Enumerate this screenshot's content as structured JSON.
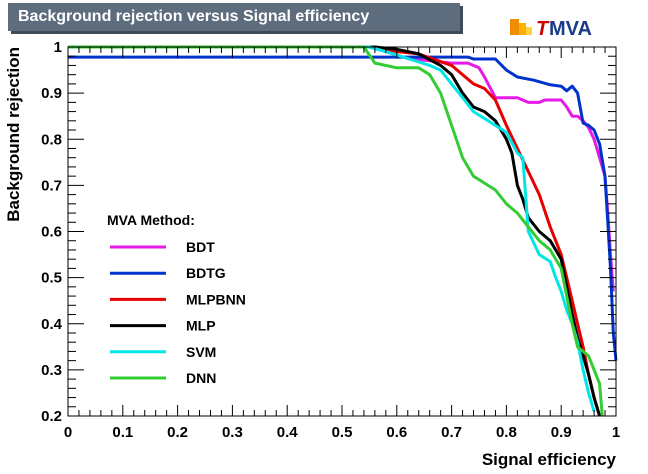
{
  "logo": {
    "prefix": "T",
    "name": "MVA"
  },
  "chart_data": {
    "type": "line",
    "title": "Background rejection versus Signal efficiency",
    "xlabel": "Signal efficiency",
    "ylabel": "Background rejection",
    "xlim": [
      0,
      1
    ],
    "ylim": [
      0.2,
      1
    ],
    "xticks": [
      "0",
      "0.1",
      "0.2",
      "0.3",
      "0.4",
      "0.5",
      "0.6",
      "0.7",
      "0.8",
      "0.9",
      "1"
    ],
    "yticks": [
      "0.2",
      "0.3",
      "0.4",
      "0.5",
      "0.6",
      "0.7",
      "0.8",
      "0.9",
      "1"
    ],
    "legend_title": "MVA Method:",
    "legend_position": "center-left",
    "grid": false,
    "series": [
      {
        "name": "BDT",
        "color": "#e619e6",
        "points": [
          [
            0,
            1
          ],
          [
            0.55,
            1
          ],
          [
            0.58,
            0.99
          ],
          [
            0.62,
            0.975
          ],
          [
            0.66,
            0.97
          ],
          [
            0.7,
            0.965
          ],
          [
            0.73,
            0.965
          ],
          [
            0.75,
            0.955
          ],
          [
            0.76,
            0.935
          ],
          [
            0.78,
            0.89
          ],
          [
            0.82,
            0.89
          ],
          [
            0.84,
            0.88
          ],
          [
            0.86,
            0.88
          ],
          [
            0.87,
            0.885
          ],
          [
            0.9,
            0.885
          ],
          [
            0.91,
            0.87
          ],
          [
            0.92,
            0.85
          ],
          [
            0.93,
            0.85
          ],
          [
            0.94,
            0.84
          ],
          [
            0.95,
            0.825
          ],
          [
            0.96,
            0.8
          ],
          [
            0.97,
            0.76
          ],
          [
            0.98,
            0.72
          ],
          [
            0.985,
            0.64
          ],
          [
            0.99,
            0.55
          ],
          [
            0.995,
            0.47
          ]
        ]
      },
      {
        "name": "BDTG",
        "color": "#0033cc",
        "points": [
          [
            0,
            0.978
          ],
          [
            0.72,
            0.978
          ],
          [
            0.73,
            0.978
          ],
          [
            0.74,
            0.974
          ],
          [
            0.78,
            0.974
          ],
          [
            0.8,
            0.95
          ],
          [
            0.82,
            0.935
          ],
          [
            0.85,
            0.928
          ],
          [
            0.88,
            0.918
          ],
          [
            0.9,
            0.915
          ],
          [
            0.91,
            0.905
          ],
          [
            0.92,
            0.915
          ],
          [
            0.93,
            0.9
          ],
          [
            0.94,
            0.835
          ],
          [
            0.95,
            0.83
          ],
          [
            0.96,
            0.82
          ],
          [
            0.97,
            0.79
          ],
          [
            0.98,
            0.72
          ],
          [
            0.985,
            0.62
          ],
          [
            0.99,
            0.52
          ],
          [
            0.995,
            0.38
          ],
          [
            1,
            0.32
          ]
        ]
      },
      {
        "name": "MLPBNN",
        "color": "#e60000",
        "points": [
          [
            0,
            1
          ],
          [
            0.56,
            1
          ],
          [
            0.6,
            0.99
          ],
          [
            0.64,
            0.985
          ],
          [
            0.7,
            0.96
          ],
          [
            0.72,
            0.94
          ],
          [
            0.74,
            0.92
          ],
          [
            0.76,
            0.91
          ],
          [
            0.78,
            0.885
          ],
          [
            0.8,
            0.83
          ],
          [
            0.82,
            0.78
          ],
          [
            0.84,
            0.73
          ],
          [
            0.86,
            0.68
          ],
          [
            0.88,
            0.61
          ],
          [
            0.9,
            0.55
          ],
          [
            0.91,
            0.5
          ],
          [
            0.92,
            0.45
          ],
          [
            0.93,
            0.4
          ],
          [
            0.94,
            0.35
          ],
          [
            0.95,
            0.29
          ],
          [
            0.96,
            0.24
          ],
          [
            0.97,
            0.2
          ]
        ]
      },
      {
        "name": "MLP",
        "color": "#000000",
        "points": [
          [
            0,
            1
          ],
          [
            0.56,
            1
          ],
          [
            0.6,
            0.995
          ],
          [
            0.64,
            0.985
          ],
          [
            0.68,
            0.96
          ],
          [
            0.7,
            0.94
          ],
          [
            0.72,
            0.9
          ],
          [
            0.74,
            0.87
          ],
          [
            0.76,
            0.86
          ],
          [
            0.78,
            0.84
          ],
          [
            0.79,
            0.82
          ],
          [
            0.8,
            0.8
          ],
          [
            0.81,
            0.77
          ],
          [
            0.82,
            0.7
          ],
          [
            0.83,
            0.67
          ],
          [
            0.84,
            0.63
          ],
          [
            0.86,
            0.6
          ],
          [
            0.88,
            0.58
          ],
          [
            0.9,
            0.54
          ],
          [
            0.91,
            0.48
          ],
          [
            0.92,
            0.42
          ],
          [
            0.93,
            0.37
          ],
          [
            0.94,
            0.33
          ],
          [
            0.95,
            0.29
          ],
          [
            0.96,
            0.24
          ],
          [
            0.97,
            0.2
          ]
        ]
      },
      {
        "name": "SVM",
        "color": "#00e6e6",
        "points": [
          [
            0,
            1
          ],
          [
            0.55,
            1
          ],
          [
            0.58,
            0.99
          ],
          [
            0.62,
            0.975
          ],
          [
            0.66,
            0.96
          ],
          [
            0.68,
            0.95
          ],
          [
            0.7,
            0.92
          ],
          [
            0.72,
            0.89
          ],
          [
            0.74,
            0.86
          ],
          [
            0.76,
            0.845
          ],
          [
            0.78,
            0.83
          ],
          [
            0.8,
            0.815
          ],
          [
            0.82,
            0.77
          ],
          [
            0.83,
            0.76
          ],
          [
            0.84,
            0.6
          ],
          [
            0.86,
            0.55
          ],
          [
            0.88,
            0.535
          ],
          [
            0.89,
            0.5
          ],
          [
            0.9,
            0.47
          ],
          [
            0.91,
            0.43
          ],
          [
            0.92,
            0.4
          ],
          [
            0.93,
            0.36
          ],
          [
            0.94,
            0.3
          ],
          [
            0.95,
            0.25
          ],
          [
            0.96,
            0.21
          ]
        ]
      },
      {
        "name": "DNN",
        "color": "#33cc33",
        "points": [
          [
            0,
            1
          ],
          [
            0.54,
            1
          ],
          [
            0.56,
            0.965
          ],
          [
            0.6,
            0.955
          ],
          [
            0.64,
            0.955
          ],
          [
            0.66,
            0.94
          ],
          [
            0.68,
            0.9
          ],
          [
            0.7,
            0.83
          ],
          [
            0.72,
            0.76
          ],
          [
            0.74,
            0.72
          ],
          [
            0.76,
            0.705
          ],
          [
            0.78,
            0.69
          ],
          [
            0.8,
            0.66
          ],
          [
            0.82,
            0.64
          ],
          [
            0.84,
            0.61
          ],
          [
            0.86,
            0.58
          ],
          [
            0.88,
            0.56
          ],
          [
            0.9,
            0.52
          ],
          [
            0.91,
            0.46
          ],
          [
            0.92,
            0.4
          ],
          [
            0.93,
            0.35
          ],
          [
            0.94,
            0.34
          ],
          [
            0.95,
            0.33
          ],
          [
            0.96,
            0.3
          ],
          [
            0.97,
            0.27
          ],
          [
            0.975,
            0.2
          ]
        ]
      }
    ]
  }
}
